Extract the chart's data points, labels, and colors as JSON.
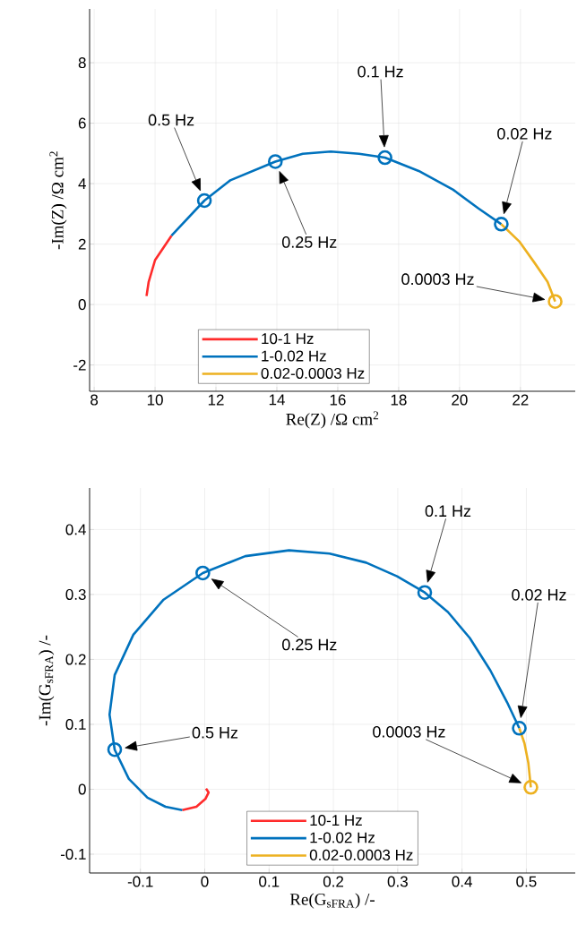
{
  "chart_data": [
    {
      "type": "line",
      "xlabel": "Re(Z) /Ω cm$^{2}$",
      "ylabel": "-Im(Z) /Ω cm$^{2}$",
      "xlim": [
        7.85,
        23.8
      ],
      "ylim": [
        -2.87,
        9.78
      ],
      "xticks": [
        8,
        10,
        12,
        14,
        16,
        18,
        20,
        22
      ],
      "yticks": [
        -2,
        0,
        2,
        4,
        6,
        8
      ],
      "grid": true,
      "legend": "bottom",
      "line_style": "solid",
      "marker": "none",
      "series": [
        {
          "name": "10-1 Hz",
          "color": "#ff2b2b",
          "x": [
            9.72,
            9.79,
            10.0,
            10.54
          ],
          "values": [
            0.28,
            0.75,
            1.47,
            2.28
          ]
        },
        {
          "name": "1-0.02 Hz",
          "color": "#0072bd",
          "x": [
            10.54,
            11.62,
            12.47,
            13.95,
            14.85,
            15.77,
            16.7,
            17.55,
            18.66,
            19.79,
            20.62,
            21.37
          ],
          "values": [
            2.28,
            3.44,
            4.11,
            4.73,
            4.99,
            5.06,
            4.99,
            4.86,
            4.42,
            3.8,
            3.18,
            2.66
          ]
        },
        {
          "name": "0.02-0.0003 Hz",
          "color": "#edb120",
          "x": [
            21.37,
            21.96,
            22.47,
            22.89,
            23.14
          ],
          "values": [
            2.66,
            2.09,
            1.37,
            0.75,
            0.1
          ]
        },
        {
          "type": "scatter",
          "marker": "circle",
          "color": "#0072bd",
          "x": [
            11.62,
            13.95,
            17.55,
            21.37
          ],
          "values": [
            3.44,
            4.73,
            4.86,
            2.66
          ]
        },
        {
          "type": "scatter",
          "marker": "circle",
          "color": "#edb120",
          "x": [
            23.14
          ],
          "values": [
            0.1
          ]
        }
      ],
      "annotations": [
        "0.5 Hz",
        "0.25 Hz",
        "0.1 Hz",
        "0.02 Hz",
        "0.0003 Hz"
      ]
    },
    {
      "type": "line",
      "xlabel": "Re(G$_{sFRA}$) /-",
      "ylabel": "-Im(G$_{sFRA}$) /-",
      "xlim": [
        -0.179,
        0.576
      ],
      "ylim": [
        -0.129,
        0.464
      ],
      "xticks": [
        -0.1,
        0,
        0.1,
        0.2,
        0.3,
        0.4,
        0.5
      ],
      "yticks": [
        -0.1,
        0,
        0.1,
        0.2,
        0.3,
        0.4
      ],
      "grid": true,
      "legend": "bottom",
      "line_style": "solid",
      "marker": "none",
      "series": [
        {
          "name": "10-1 Hz",
          "color": "#ff2b2b",
          "x": [
            0.002,
            0.006,
            0.001,
            -0.013,
            -0.035
          ],
          "values": [
            0.001,
            -0.005,
            -0.015,
            -0.027,
            -0.032
          ]
        },
        {
          "name": "1-0.02 Hz",
          "color": "#0072bd",
          "x": [
            -0.035,
            -0.061,
            -0.089,
            -0.118,
            -0.14,
            -0.148,
            -0.14,
            -0.111,
            -0.064,
            -0.003,
            0.063,
            0.131,
            0.194,
            0.251,
            0.299,
            0.342,
            0.378,
            0.412,
            0.444,
            0.47,
            0.489
          ],
          "values": [
            -0.032,
            -0.027,
            -0.013,
            0.016,
            0.061,
            0.115,
            0.176,
            0.238,
            0.292,
            0.333,
            0.359,
            0.368,
            0.363,
            0.349,
            0.328,
            0.303,
            0.273,
            0.233,
            0.183,
            0.134,
            0.094
          ]
        },
        {
          "name": "0.02-0.0003 Hz",
          "color": "#edb120",
          "x": [
            0.489,
            0.497,
            0.503,
            0.507
          ],
          "values": [
            0.094,
            0.071,
            0.041,
            0.003
          ]
        },
        {
          "type": "scatter",
          "marker": "circle",
          "color": "#0072bd",
          "x": [
            -0.14,
            -0.003,
            0.342,
            0.489
          ],
          "values": [
            0.061,
            0.333,
            0.303,
            0.094
          ]
        },
        {
          "type": "scatter",
          "marker": "circle",
          "color": "#edb120",
          "x": [
            0.507
          ],
          "values": [
            0.003
          ]
        }
      ],
      "annotations": [
        "0.5 Hz",
        "0.25 Hz",
        "0.1 Hz",
        "0.02 Hz",
        "0.0003 Hz"
      ]
    }
  ]
}
